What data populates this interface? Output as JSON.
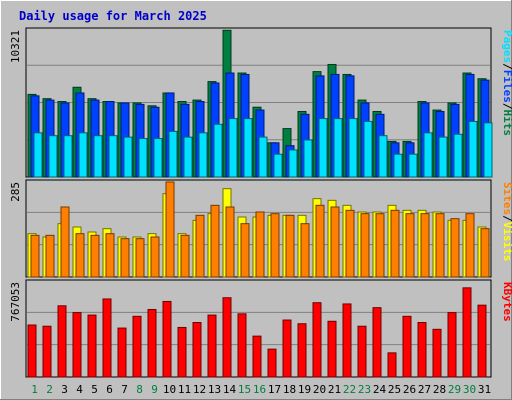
{
  "chart_data": {
    "type": "bar",
    "title": "Daily usage for March 2025",
    "x": [
      "1",
      "2",
      "3",
      "4",
      "5",
      "6",
      "7",
      "8",
      "9",
      "10",
      "11",
      "12",
      "13",
      "14",
      "15",
      "16",
      "17",
      "18",
      "19",
      "20",
      "21",
      "22",
      "23",
      "24",
      "25",
      "26",
      "27",
      "28",
      "29",
      "30",
      "31"
    ],
    "weekend_days": [
      1,
      2,
      8,
      9,
      15,
      16,
      22,
      23,
      29,
      30
    ],
    "colors": {
      "hits": "#008040",
      "files": "#0040ff",
      "pages": "#00e0ff",
      "visits": "#ffff00",
      "sites": "#ff8000",
      "kbytes": "#ff0000",
      "weekday_label": "#000000",
      "weekend_label": "#008040"
    },
    "panels": [
      {
        "id": "hits-files-pages",
        "ymax_label": "10321",
        "ymax": 10321,
        "legend": [
          {
            "text": "Pages",
            "color": "#00e0ff"
          },
          {
            "text": "/",
            "color": "#000000"
          },
          {
            "text": "Files",
            "color": "#0040ff"
          },
          {
            "text": "/",
            "color": "#000000"
          },
          {
            "text": "Hits",
            "color": "#008040"
          }
        ],
        "series": [
          {
            "name": "Hits",
            "color": "#008040",
            "values": [
              5800,
              5500,
              5300,
              6300,
              5500,
              5300,
              5200,
              5200,
              5000,
              5900,
              5300,
              5400,
              6700,
              10300,
              7300,
              4900,
              2400,
              3400,
              4600,
              7400,
              7900,
              7200,
              5400,
              4600,
              2500,
              2500,
              5300,
              4700,
              5200,
              7300,
              6900
            ]
          },
          {
            "name": "Files",
            "color": "#0040ff",
            "values": [
              5700,
              5400,
              5200,
              5900,
              5400,
              5300,
              5200,
              5100,
              4900,
              5900,
              5100,
              5300,
              6600,
              7300,
              7200,
              4700,
              2400,
              2200,
              4400,
              7100,
              7200,
              7100,
              5200,
              4400,
              2400,
              2400,
              5200,
              4600,
              5100,
              7200,
              6800
            ]
          },
          {
            "name": "Pages",
            "color": "#00e0ff",
            "values": [
              3100,
              2900,
              2900,
              3100,
              2900,
              2900,
              2800,
              2700,
              2700,
              3200,
              2800,
              3100,
              3700,
              4100,
              4100,
              2800,
              1600,
              1900,
              2600,
              4100,
              4100,
              4100,
              3900,
              2900,
              1600,
              1600,
              3100,
              2800,
              3000,
              3900,
              3800
            ]
          }
        ]
      },
      {
        "id": "visits-sites",
        "ymax_label": "285",
        "ymax": 285,
        "legend": [
          {
            "text": "Sites",
            "color": "#ff8000"
          },
          {
            "text": "/",
            "color": "#000000"
          },
          {
            "text": "Visits",
            "color": "#ffff00"
          }
        ],
        "series": [
          {
            "name": "Visits",
            "color": "#ffff00",
            "values": [
              130,
              120,
              160,
              150,
              135,
              145,
              120,
              120,
              130,
              250,
              130,
              170,
              190,
              265,
              180,
              180,
              185,
              185,
              185,
              235,
              230,
              215,
              195,
              195,
              215,
              200,
              200,
              195,
              170,
              170,
              150
            ]
          },
          {
            "name": "Sites",
            "color": "#ff8000",
            "values": [
              125,
              125,
              210,
              130,
              125,
              130,
              115,
              115,
              120,
              285,
              125,
              185,
              215,
              210,
              160,
              195,
              190,
              185,
              160,
              215,
              210,
              200,
              190,
              190,
              200,
              190,
              190,
              190,
              175,
              190,
              145
            ]
          }
        ]
      },
      {
        "id": "kbytes",
        "ymax_label": "767053",
        "ymax": 767053,
        "legend": [
          {
            "text": "KBytes",
            "color": "#ff0000"
          }
        ],
        "series": [
          {
            "name": "KBytes",
            "color": "#ff0000",
            "values": [
              420000,
              410000,
              575000,
              520000,
              500000,
              630000,
              395000,
              490000,
              545000,
              610000,
              400000,
              440000,
              500000,
              640000,
              510000,
              330000,
              225000,
              460000,
              430000,
              600000,
              450000,
              590000,
              410000,
              560000,
              195000,
              490000,
              440000,
              385000,
              520000,
              720000,
              580000
            ]
          }
        ]
      }
    ]
  }
}
